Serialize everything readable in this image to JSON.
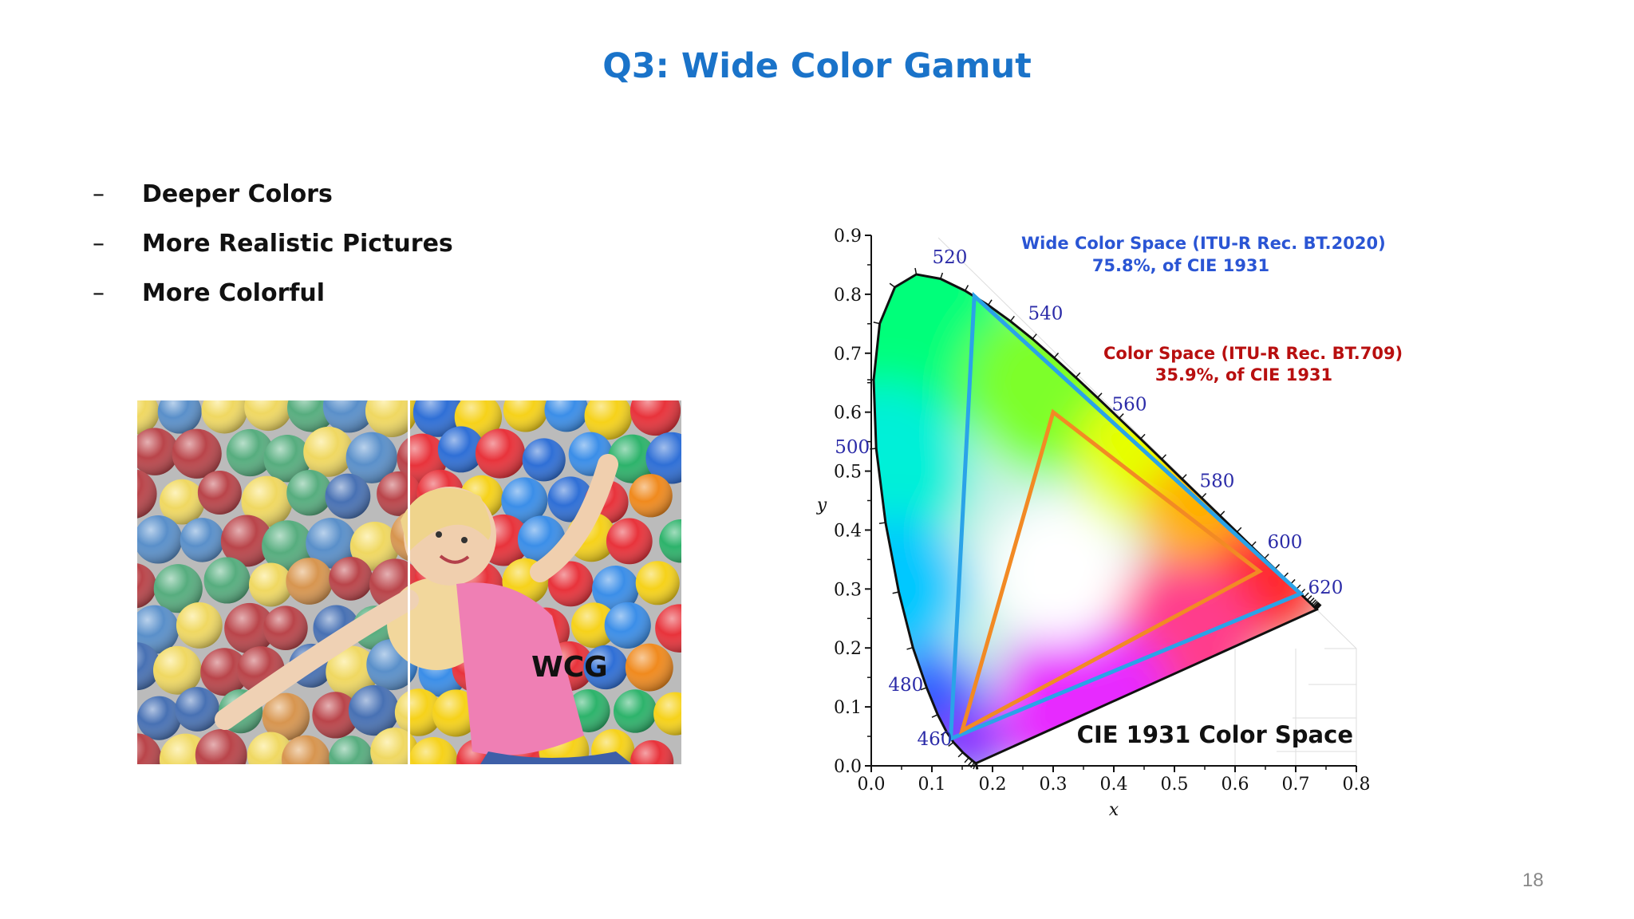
{
  "slide": {
    "title": "Q3: Wide Color Gamut",
    "bullets": [
      "Deeper Colors",
      "More Realistic Pictures",
      "More Colorful"
    ],
    "bullet_marker": "–",
    "photo_label": "WCG",
    "page_number": "18"
  },
  "chart_data": {
    "type": "scatter",
    "title": "CIE 1931 Color Space",
    "xlabel": "x",
    "ylabel": "y",
    "xlim": [
      0,
      0.8
    ],
    "ylim": [
      0,
      0.9
    ],
    "xticks": [
      "0.0",
      "0.1",
      "0.2",
      "0.3",
      "0.4",
      "0.5",
      "0.6",
      "0.7",
      "0.8"
    ],
    "yticks": [
      "0.0",
      "0.1",
      "0.2",
      "0.3",
      "0.4",
      "0.5",
      "0.6",
      "0.7",
      "0.8",
      "0.9"
    ],
    "grid": false,
    "spectral_locus": [
      [
        0.1741,
        0.005
      ],
      [
        0.1738,
        0.0049
      ],
      [
        0.1736,
        0.0049
      ],
      [
        0.173,
        0.0048
      ],
      [
        0.1721,
        0.0048
      ],
      [
        0.1703,
        0.0058
      ],
      [
        0.1666,
        0.0089
      ],
      [
        0.1609,
        0.0138
      ],
      [
        0.151,
        0.0227
      ],
      [
        0.1355,
        0.0399
      ],
      [
        0.1241,
        0.0578
      ],
      [
        0.1096,
        0.0868
      ],
      [
        0.0913,
        0.1327
      ],
      [
        0.0687,
        0.2007
      ],
      [
        0.0454,
        0.295
      ],
      [
        0.0235,
        0.4127
      ],
      [
        0.0082,
        0.5384
      ],
      [
        0.0039,
        0.6548
      ],
      [
        0.0139,
        0.7502
      ],
      [
        0.0389,
        0.812
      ],
      [
        0.0743,
        0.8338
      ],
      [
        0.1142,
        0.8262
      ],
      [
        0.1547,
        0.8059
      ],
      [
        0.1929,
        0.7816
      ],
      [
        0.2296,
        0.7543
      ],
      [
        0.2658,
        0.7243
      ],
      [
        0.3016,
        0.6923
      ],
      [
        0.3373,
        0.6589
      ],
      [
        0.3731,
        0.6245
      ],
      [
        0.4087,
        0.5896
      ],
      [
        0.4441,
        0.5547
      ],
      [
        0.4788,
        0.5202
      ],
      [
        0.5125,
        0.4866
      ],
      [
        0.5448,
        0.4544
      ],
      [
        0.5752,
        0.4242
      ],
      [
        0.6029,
        0.3965
      ],
      [
        0.627,
        0.3725
      ],
      [
        0.6482,
        0.3514
      ],
      [
        0.6658,
        0.334
      ],
      [
        0.6801,
        0.3197
      ],
      [
        0.6915,
        0.3083
      ],
      [
        0.7006,
        0.2993
      ],
      [
        0.7079,
        0.292
      ],
      [
        0.714,
        0.2859
      ],
      [
        0.719,
        0.2809
      ],
      [
        0.723,
        0.277
      ],
      [
        0.726,
        0.274
      ],
      [
        0.7283,
        0.2717
      ],
      [
        0.73,
        0.27
      ],
      [
        0.7311,
        0.2689
      ],
      [
        0.732,
        0.268
      ],
      [
        0.7327,
        0.2673
      ],
      [
        0.7334,
        0.2666
      ],
      [
        0.734,
        0.266
      ],
      [
        0.7344,
        0.2656
      ],
      [
        0.7346,
        0.2654
      ],
      [
        0.7347,
        0.2653
      ]
    ],
    "wavelength_labels": [
      {
        "label": "460",
        "x": 0.144,
        "y": 0.0297
      },
      {
        "label": "480",
        "x": 0.0913,
        "y": 0.1327
      },
      {
        "label": "500",
        "x": 0.0082,
        "y": 0.5384
      },
      {
        "label": "520",
        "x": 0.0743,
        "y": 0.8338
      },
      {
        "label": "540",
        "x": 0.2296,
        "y": 0.7543
      },
      {
        "label": "560",
        "x": 0.3731,
        "y": 0.6245
      },
      {
        "label": "580",
        "x": 0.5125,
        "y": 0.4866
      },
      {
        "label": "600",
        "x": 0.627,
        "y": 0.3725
      },
      {
        "label": "620",
        "x": 0.6915,
        "y": 0.3083
      }
    ],
    "series": [
      {
        "name": "Wide Color Space (ITU-R Rec. BT.2020)",
        "subtitle": "75.8%, of CIE 1931",
        "color": "#2aa3e8",
        "label_color": "#2a55d4",
        "points": [
          [
            0.708,
            0.292
          ],
          [
            0.17,
            0.797
          ],
          [
            0.131,
            0.046
          ]
        ]
      },
      {
        "name": "Color Space (ITU-R Rec. BT.709)",
        "subtitle": "35.9%, of CIE 1931",
        "color": "#f28a24",
        "label_color": "#b80f0f",
        "points": [
          [
            0.64,
            0.33
          ],
          [
            0.3,
            0.6
          ],
          [
            0.15,
            0.06
          ]
        ]
      }
    ]
  }
}
